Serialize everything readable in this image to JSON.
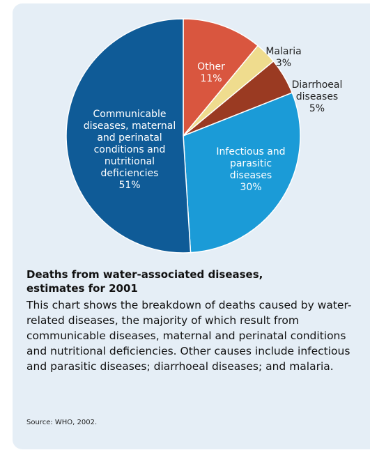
{
  "chart_data": {
    "type": "pie",
    "title": "Deaths from water-associated diseases, estimates for 2001",
    "description": "This chart shows the breakdown of deaths caused by water-related diseases, the majority of which result from communicable diseases, maternal and perinatal conditions and nutritional deficiencies. Other causes include infectious and parasitic diseases; diarrhoeal diseases; and malaria.",
    "source": "Source: WHO, 2002.",
    "categories": [
      "Other",
      "Malaria",
      "Diarrhoeal diseases",
      "Infectious and parasitic diseases",
      "Communicable diseases, maternal and perinatal conditions and nutritional deficiencies"
    ],
    "values": [
      11,
      3,
      5,
      30,
      51
    ],
    "value_labels": [
      "11%",
      "3%",
      "5%",
      "30%",
      "51%"
    ],
    "colors": [
      "#d9563f",
      "#efdc8e",
      "#9a3a22",
      "#1b9bd7",
      "#0f5b97"
    ]
  }
}
